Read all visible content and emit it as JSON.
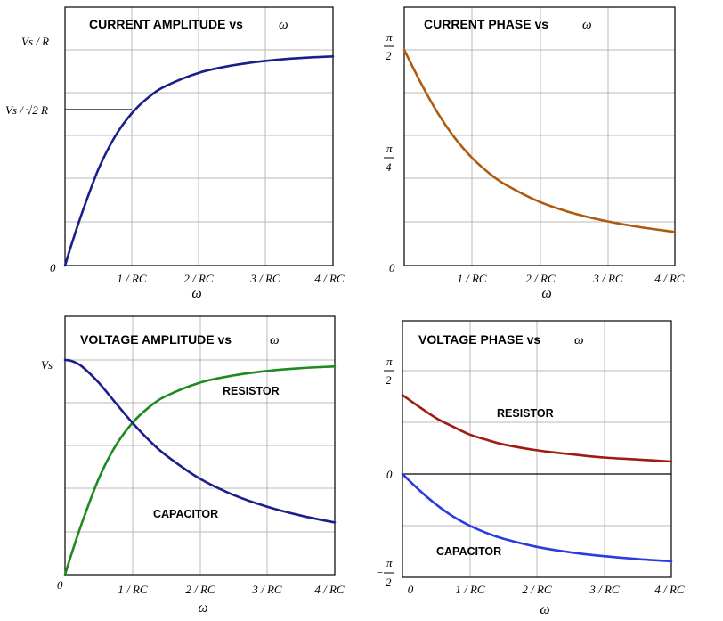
{
  "chart_data": [
    {
      "type": "line",
      "title": "CURRENT AMPLITUDE vs",
      "title_symbol": "ω",
      "xlabel": "ω",
      "x_ticks": [
        "1 / RC",
        "2 / RC",
        "3 / RC",
        "4 / RC"
      ],
      "x_origin_label": "0",
      "y_ticks": [
        "Vs / R",
        "Vs / √2 R",
        "0"
      ],
      "xlim": [
        0,
        4
      ],
      "ylim": [
        0,
        1.05
      ],
      "grid": true,
      "series": [
        {
          "color": "#1a1f8c",
          "x": [
            0,
            0.1,
            0.25,
            0.5,
            0.75,
            1.0,
            1.25,
            1.5,
            2.0,
            2.5,
            3.0,
            3.5,
            4.0
          ],
          "y": [
            0,
            0.1,
            0.24,
            0.447,
            0.6,
            0.707,
            0.781,
            0.832,
            0.894,
            0.928,
            0.949,
            0.962,
            0.97
          ]
        }
      ],
      "annotations": [
        {
          "x": 1.0,
          "y": 0.707,
          "type": "hline-to-y-axis"
        }
      ]
    },
    {
      "type": "line",
      "title": "CURRENT PHASE vs",
      "title_symbol": "ω",
      "xlabel": "ω",
      "x_ticks": [
        "1 / RC",
        "2 / RC",
        "3 / RC",
        "4 / RC"
      ],
      "x_origin_label": "0",
      "y_ticks": [
        "π/2",
        "π/4",
        "0"
      ],
      "xlim": [
        0,
        4
      ],
      "ylim": [
        0,
        1.65
      ],
      "grid": true,
      "series": [
        {
          "color": "#b05a10",
          "x": [
            0,
            0.25,
            0.5,
            0.75,
            1.0,
            1.25,
            1.5,
            2.0,
            2.5,
            3.0,
            3.5,
            4.0
          ],
          "y": [
            1.5708,
            1.3258,
            1.1071,
            0.9273,
            0.7854,
            0.6747,
            0.588,
            0.4636,
            0.3805,
            0.3218,
            0.2783,
            0.245
          ]
        }
      ]
    },
    {
      "type": "line",
      "title": "VOLTAGE AMPLITUDE vs",
      "title_symbol": "ω",
      "xlabel": "ω",
      "x_ticks": [
        "1 / RC",
        "2 / RC",
        "3 / RC",
        "4 / RC"
      ],
      "x_origin_label": "0",
      "y_ticks": [
        "Vs"
      ],
      "xlim": [
        0,
        4
      ],
      "ylim": [
        0,
        1.05
      ],
      "grid": true,
      "series": [
        {
          "name": "RESISTOR",
          "color": "#1f8a1f",
          "x": [
            0,
            0.1,
            0.25,
            0.5,
            0.75,
            1.0,
            1.25,
            1.5,
            2.0,
            2.5,
            3.0,
            3.5,
            4.0
          ],
          "y": [
            0,
            0.1,
            0.24,
            0.447,
            0.6,
            0.707,
            0.781,
            0.832,
            0.894,
            0.928,
            0.949,
            0.962,
            0.97
          ]
        },
        {
          "name": "CAPACITOR",
          "color": "#1a1f8c",
          "x": [
            0,
            0.1,
            0.25,
            0.5,
            0.75,
            1.0,
            1.25,
            1.5,
            2.0,
            2.5,
            3.0,
            3.5,
            4.0
          ],
          "y": [
            1.0,
            0.995,
            0.97,
            0.894,
            0.8,
            0.707,
            0.625,
            0.555,
            0.447,
            0.371,
            0.316,
            0.275,
            0.243
          ]
        }
      ]
    },
    {
      "type": "line",
      "title": "VOLTAGE PHASE vs",
      "title_symbol": "ω",
      "xlabel": "ω",
      "x_ticks": [
        "0",
        "1 / RC",
        "2 / RC",
        "3 / RC",
        "4 / RC"
      ],
      "y_ticks": [
        "π/2",
        "0",
        "−π/2"
      ],
      "xlim": [
        0,
        4
      ],
      "ylim": [
        -1.5708,
        1.5708
      ],
      "grid": true,
      "series": [
        {
          "name": "RESISTOR",
          "color": "#a01a10",
          "x": [
            0,
            0.25,
            0.5,
            0.75,
            1.0,
            1.25,
            1.5,
            2.0,
            2.5,
            3.0,
            3.5,
            4.0
          ],
          "y": [
            1.2,
            1.02,
            0.85,
            0.72,
            0.6,
            0.52,
            0.45,
            0.36,
            0.3,
            0.25,
            0.22,
            0.19
          ]
        },
        {
          "name": "CAPACITOR",
          "color": "#2a3be0",
          "x": [
            0,
            0.25,
            0.5,
            0.75,
            1.0,
            1.25,
            1.5,
            2.0,
            2.5,
            3.0,
            3.5,
            4.0
          ],
          "y": [
            0,
            -0.2449,
            -0.4636,
            -0.6435,
            -0.7854,
            -0.8961,
            -0.9828,
            -1.1071,
            -1.1903,
            -1.249,
            -1.2925,
            -1.3258
          ]
        }
      ]
    }
  ]
}
